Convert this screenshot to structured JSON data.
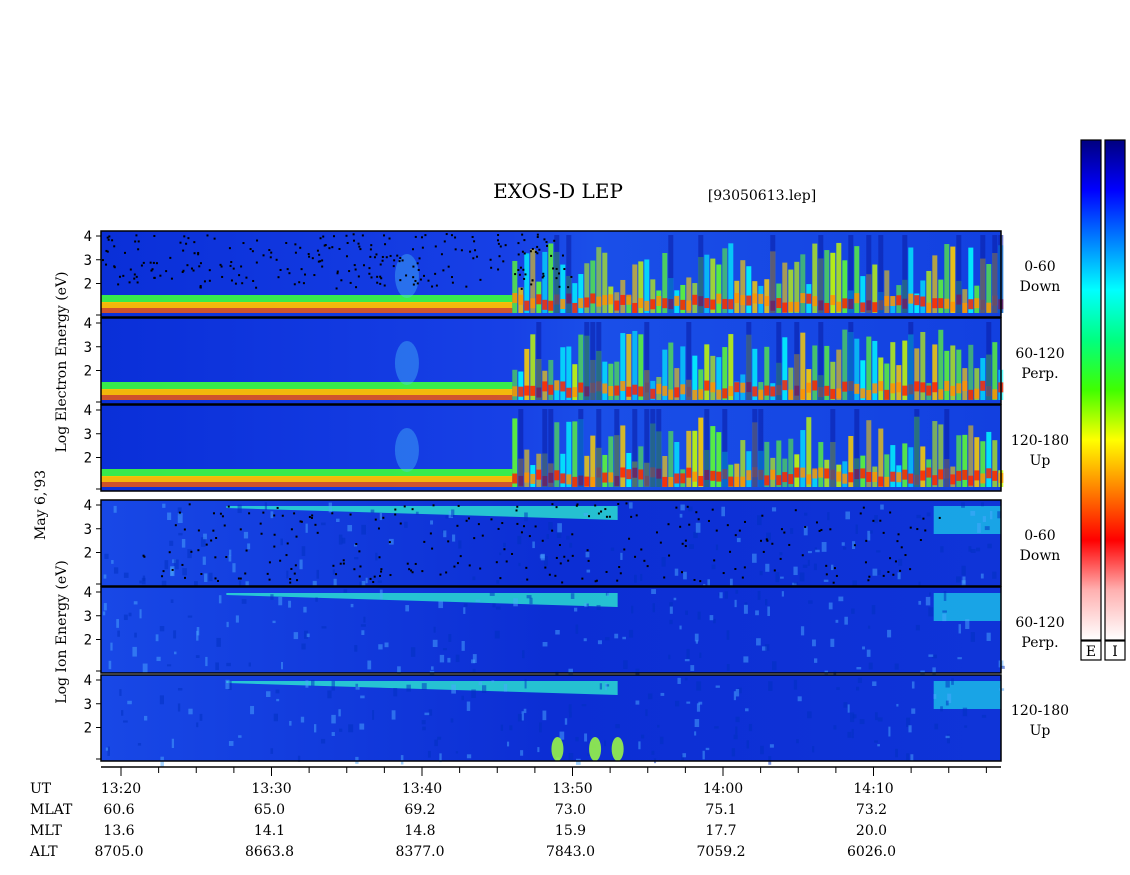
{
  "chart_data": {
    "type": "heatmap",
    "title": "EXOS-D LEP",
    "file": "[93050613.lep]",
    "date_label": "May 6,'93",
    "electron_ylabel": "Log Electron Energy (eV)",
    "ion_ylabel": "Log Ion Energy (eV)",
    "ylim": [
      1,
      4
    ],
    "y_ticks": [
      "4",
      "3",
      "2"
    ],
    "panels": [
      {
        "species": "Electron",
        "range": "0-60",
        "dir": "Down"
      },
      {
        "species": "Electron",
        "range": "60-120",
        "dir": "Perp."
      },
      {
        "species": "Electron",
        "range": "120-180",
        "dir": "Up"
      },
      {
        "species": "Ion",
        "range": "0-60",
        "dir": "Down"
      },
      {
        "species": "Ion",
        "range": "60-120",
        "dir": "Perp."
      },
      {
        "species": "Ion",
        "range": "120-180",
        "dir": "Up"
      }
    ],
    "colorbar_labels": [
      "E",
      "I"
    ],
    "colorbar_colors": [
      "#ffffff",
      "#ffb0b0",
      "#ff0000",
      "#ff8000",
      "#ffff00",
      "#40ff00",
      "#00ff80",
      "#00ffff",
      "#0080ff",
      "#0000ff",
      "#000080"
    ],
    "xaxis": {
      "row_labels": [
        "UT",
        "MLAT",
        "MLT",
        "ALT"
      ],
      "ticks": [
        {
          "ut": "13:20",
          "mlat": "60.6",
          "mlt": "13.6",
          "alt": "8705.0"
        },
        {
          "ut": "13:30",
          "mlat": "65.0",
          "mlt": "14.1",
          "alt": "8663.8"
        },
        {
          "ut": "13:40",
          "mlat": "69.2",
          "mlt": "14.8",
          "alt": "8377.0"
        },
        {
          "ut": "13:50",
          "mlat": "73.0",
          "mlt": "15.9",
          "alt": "7843.0"
        },
        {
          "ut": "14:00",
          "mlat": "75.1",
          "mlt": "17.7",
          "alt": "7059.2"
        },
        {
          "ut": "14:10",
          "mlat": "73.2",
          "mlt": "20.0",
          "alt": "6026.0"
        }
      ]
    }
  }
}
